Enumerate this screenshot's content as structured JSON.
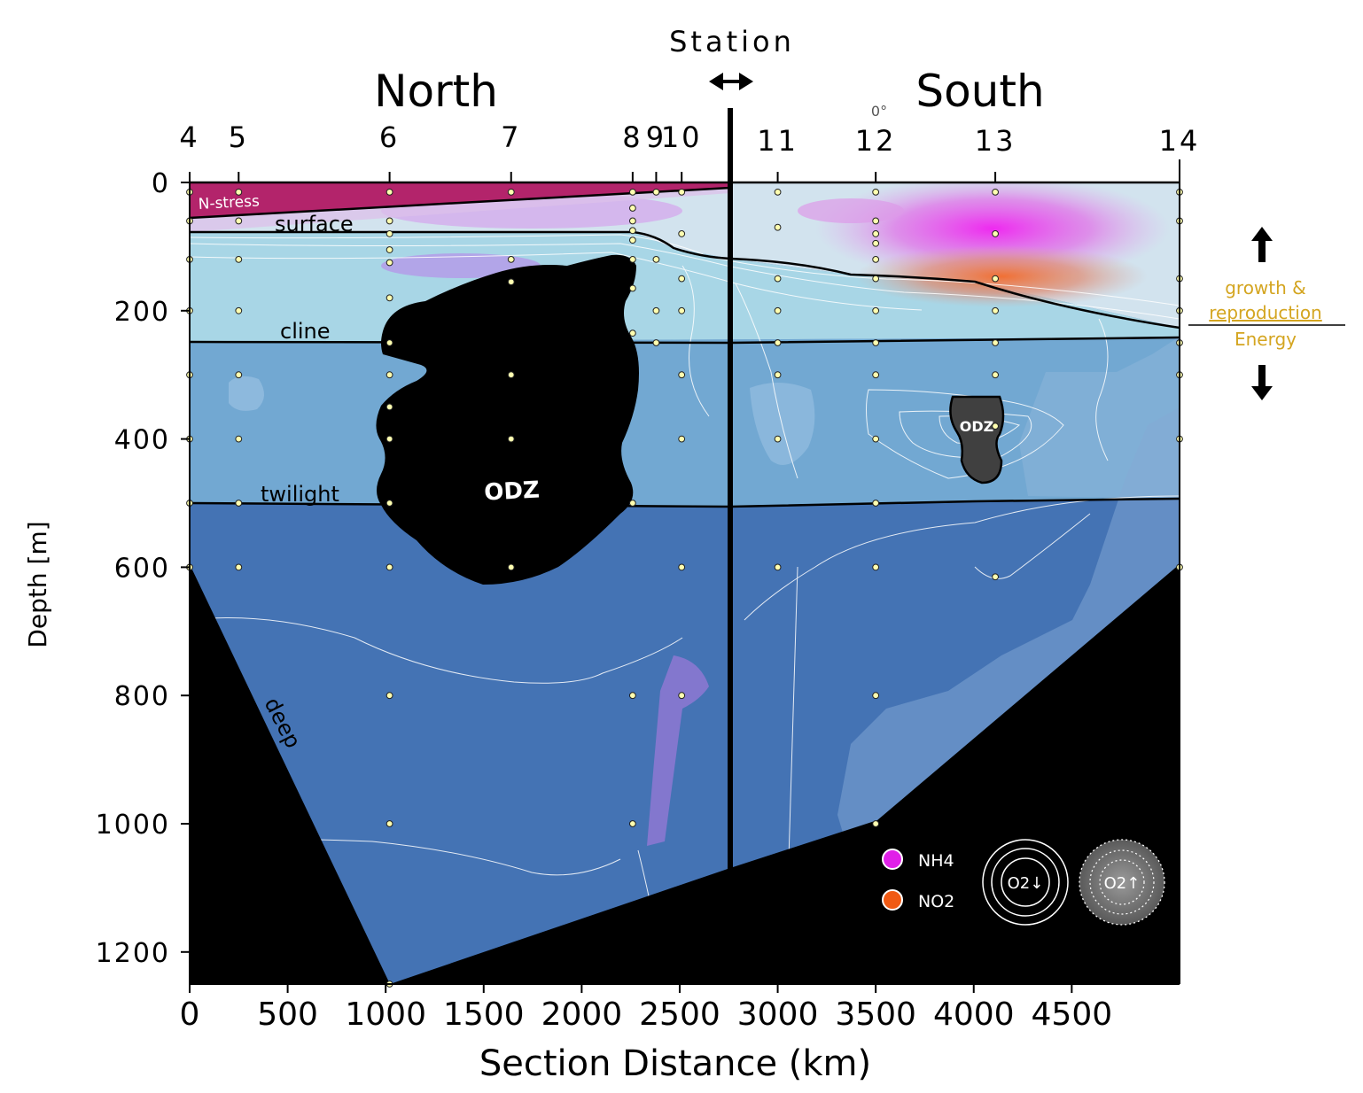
{
  "chart_data": {
    "type": "section-contour",
    "header": {
      "station_label": "Station",
      "north_label": "North",
      "south_label": "South",
      "equator_label": "0°"
    },
    "xlabel": "Section Distance  (km)",
    "ylabel": "Depth  [m]",
    "xlim": [
      0,
      5050
    ],
    "ylim": [
      1250,
      0
    ],
    "x_ticks": [
      0,
      500,
      1000,
      1500,
      2000,
      2500,
      3000,
      3500,
      4000,
      4500
    ],
    "y_ticks": [
      0,
      200,
      400,
      600,
      800,
      1000,
      1200
    ],
    "section_break_km": 2750,
    "stations": [
      {
        "label": "4",
        "x": 0
      },
      {
        "label": "5",
        "x": 250
      },
      {
        "label": "6",
        "x": 1020
      },
      {
        "label": "7",
        "x": 1640
      },
      {
        "label": "8",
        "x": 2260
      },
      {
        "label": "9",
        "x": 2380
      },
      {
        "label": "10",
        "x": 2510
      },
      {
        "label": "11",
        "x": 3000
      },
      {
        "label": "12",
        "x": 3500
      },
      {
        "label": "13",
        "x": 4110
      },
      {
        "label": "14",
        "x": 5050
      }
    ],
    "zones": [
      {
        "label": "N-stress",
        "color": "#b3246b"
      },
      {
        "label": "surface",
        "depth": 80,
        "color": "#d2e3ee"
      },
      {
        "label": "cline",
        "depth": 245,
        "color": "#a8d6e6"
      },
      {
        "label": "twilight",
        "depth": 505,
        "color": "#72a8d2"
      },
      {
        "label": "deep",
        "color": "#4473b4"
      }
    ],
    "odz_labels": [
      "ODZ",
      "ODZ"
    ],
    "legend": [
      {
        "label": "NH4",
        "color": "#e020e8"
      },
      {
        "label": "NO2",
        "color": "#f05a14"
      }
    ],
    "o2_legend": [
      {
        "label": "O2↓",
        "meaning": "decreasing oxygen"
      },
      {
        "label": "O2↑",
        "meaning": "increasing oxygen"
      }
    ],
    "energy_note": {
      "top": "growth &",
      "middle": "reproduction",
      "bottom": "Energy",
      "color": "#d4a520"
    },
    "sample_points": [
      [
        0,
        15
      ],
      [
        0,
        60
      ],
      [
        0,
        120
      ],
      [
        0,
        200
      ],
      [
        0,
        300
      ],
      [
        0,
        400
      ],
      [
        0,
        500
      ],
      [
        0,
        600
      ],
      [
        250,
        15
      ],
      [
        250,
        60
      ],
      [
        250,
        120
      ],
      [
        250,
        200
      ],
      [
        250,
        300
      ],
      [
        250,
        400
      ],
      [
        250,
        500
      ],
      [
        250,
        600
      ],
      [
        1020,
        15
      ],
      [
        1020,
        60
      ],
      [
        1020,
        80
      ],
      [
        1020,
        105
      ],
      [
        1020,
        125
      ],
      [
        1020,
        180
      ],
      [
        1020,
        250
      ],
      [
        1020,
        300
      ],
      [
        1020,
        350
      ],
      [
        1020,
        400
      ],
      [
        1020,
        500
      ],
      [
        1020,
        600
      ],
      [
        1020,
        800
      ],
      [
        1020,
        1000
      ],
      [
        1020,
        1250
      ],
      [
        1640,
        15
      ],
      [
        1640,
        120
      ],
      [
        1640,
        155
      ],
      [
        1640,
        300
      ],
      [
        1640,
        400
      ],
      [
        1640,
        600
      ],
      [
        2260,
        15
      ],
      [
        2260,
        40
      ],
      [
        2260,
        60
      ],
      [
        2260,
        75
      ],
      [
        2260,
        90
      ],
      [
        2260,
        120
      ],
      [
        2260,
        165
      ],
      [
        2260,
        235
      ],
      [
        2260,
        500
      ],
      [
        2260,
        800
      ],
      [
        2260,
        1000
      ],
      [
        2380,
        15
      ],
      [
        2380,
        120
      ],
      [
        2380,
        200
      ],
      [
        2380,
        250
      ],
      [
        2510,
        15
      ],
      [
        2510,
        80
      ],
      [
        2510,
        150
      ],
      [
        2510,
        200
      ],
      [
        2510,
        300
      ],
      [
        2510,
        400
      ],
      [
        2510,
        600
      ],
      [
        2510,
        800
      ],
      [
        3000,
        15
      ],
      [
        3000,
        70
      ],
      [
        3000,
        150
      ],
      [
        3000,
        200
      ],
      [
        3000,
        250
      ],
      [
        3000,
        300
      ],
      [
        3000,
        400
      ],
      [
        3000,
        600
      ],
      [
        3500,
        15
      ],
      [
        3500,
        60
      ],
      [
        3500,
        80
      ],
      [
        3500,
        95
      ],
      [
        3500,
        120
      ],
      [
        3500,
        150
      ],
      [
        3500,
        200
      ],
      [
        3500,
        250
      ],
      [
        3500,
        300
      ],
      [
        3500,
        400
      ],
      [
        3500,
        500
      ],
      [
        3500,
        600
      ],
      [
        3500,
        800
      ],
      [
        3500,
        1000
      ],
      [
        4110,
        15
      ],
      [
        4110,
        80
      ],
      [
        4110,
        150
      ],
      [
        4110,
        200
      ],
      [
        4110,
        250
      ],
      [
        4110,
        300
      ],
      [
        4110,
        380
      ],
      [
        4110,
        615
      ],
      [
        5050,
        15
      ],
      [
        5050,
        60
      ],
      [
        5050,
        150
      ],
      [
        5050,
        200
      ],
      [
        5050,
        250
      ],
      [
        5050,
        300
      ],
      [
        5050,
        400
      ],
      [
        5050,
        600
      ]
    ]
  }
}
